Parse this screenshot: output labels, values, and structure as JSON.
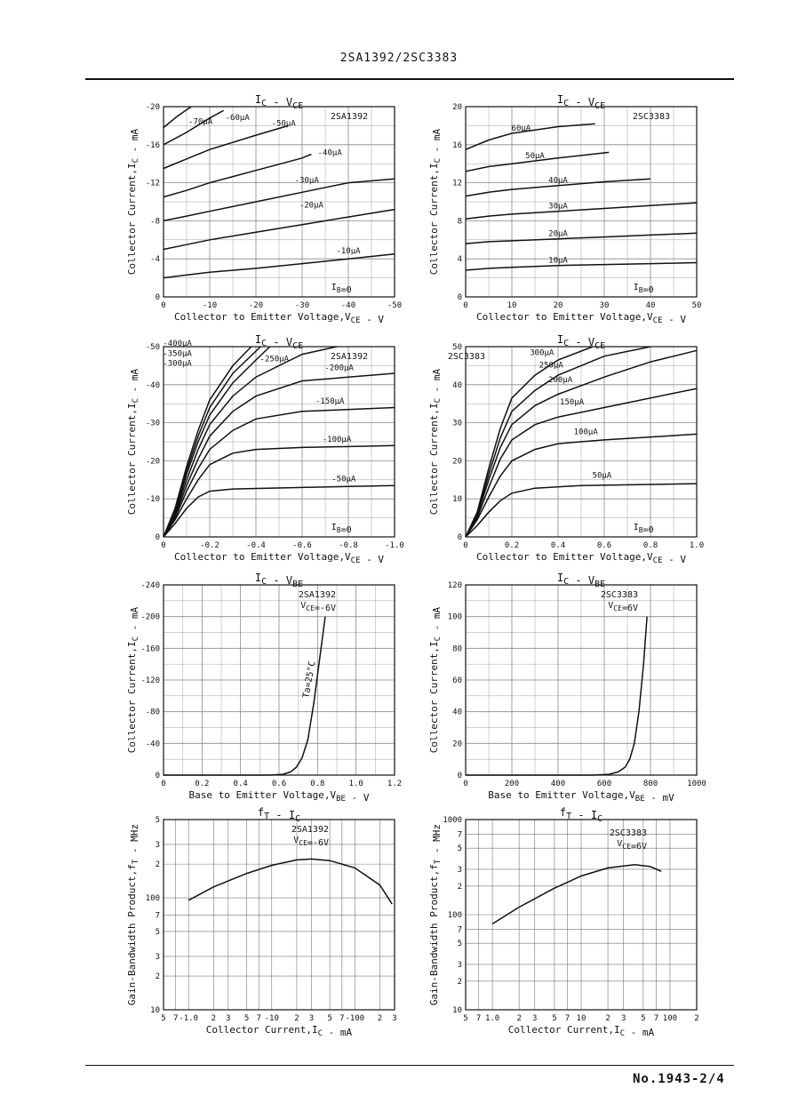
{
  "page": {
    "header": "2SA1392/2SC3383",
    "footer": "No.1943-2/4"
  },
  "chart_data": [
    {
      "id": "a",
      "type": "line",
      "title": "IC - VCE",
      "tag": "2SA1392",
      "xlabel": "Collector to Emitter Voltage,VCE - V",
      "ylabel": "Collector Current,IC - mA",
      "xlim": [
        0,
        -50
      ],
      "ylim": [
        0,
        -20
      ],
      "xticks": [
        "0",
        "-10",
        "-20",
        "-30",
        "-40",
        "-50"
      ],
      "yticks": [
        "0",
        "-4",
        "-8",
        "-12",
        "-16",
        "-20"
      ],
      "ib_label": "IB=0",
      "series": [
        {
          "name": "-10μA",
          "x": [
            0,
            -5,
            -10,
            -20,
            -30,
            -40,
            -50
          ],
          "y": [
            -2.0,
            -2.3,
            -2.6,
            -3.0,
            -3.5,
            -4.0,
            -4.5
          ]
        },
        {
          "name": "-20μA",
          "x": [
            0,
            -5,
            -10,
            -20,
            -30,
            -40,
            -50
          ],
          "y": [
            -5.0,
            -5.5,
            -6.0,
            -6.8,
            -7.6,
            -8.4,
            -9.2
          ]
        },
        {
          "name": "-30μA",
          "x": [
            0,
            -5,
            -10,
            -20,
            -30,
            -40,
            -50
          ],
          "y": [
            -8.0,
            -8.5,
            -9.0,
            -10.0,
            -11.0,
            -12.0,
            -12.4
          ]
        },
        {
          "name": "-40μA",
          "x": [
            0,
            -5,
            -10,
            -20,
            -30,
            -32
          ],
          "y": [
            -10.5,
            -11.2,
            -12.0,
            -13.3,
            -14.6,
            -15.0
          ]
        },
        {
          "name": "-50μA",
          "x": [
            0,
            -5,
            -10,
            -20,
            -27
          ],
          "y": [
            -13.5,
            -14.5,
            -15.5,
            -17.0,
            -18.0
          ]
        },
        {
          "name": "-60μA",
          "x": [
            0,
            -5,
            -10,
            -13
          ],
          "y": [
            -16.0,
            -17.3,
            -18.8,
            -19.6
          ]
        },
        {
          "name": "-70μA",
          "x": [
            0,
            -3,
            -6
          ],
          "y": [
            -17.8,
            -19.0,
            -20.0
          ]
        }
      ]
    },
    {
      "id": "b",
      "type": "line",
      "title": "IC - VCE",
      "tag": "2SC3383",
      "xlabel": "Collector to Emitter Voltage,VCE - V",
      "ylabel": "Collector Current,IC - mA",
      "xlim": [
        0,
        50
      ],
      "ylim": [
        0,
        20
      ],
      "xticks": [
        "0",
        "10",
        "20",
        "30",
        "40",
        "50"
      ],
      "yticks": [
        "0",
        "4",
        "8",
        "12",
        "16",
        "20"
      ],
      "ib_label": "IB=0",
      "series": [
        {
          "name": "10μA",
          "x": [
            0,
            5,
            10,
            20,
            30,
            40,
            50
          ],
          "y": [
            2.8,
            3.0,
            3.1,
            3.3,
            3.4,
            3.5,
            3.6
          ]
        },
        {
          "name": "20μA",
          "x": [
            0,
            5,
            10,
            20,
            30,
            40,
            50
          ],
          "y": [
            5.6,
            5.8,
            5.9,
            6.1,
            6.3,
            6.5,
            6.7
          ]
        },
        {
          "name": "30μA",
          "x": [
            0,
            5,
            10,
            20,
            30,
            40,
            50
          ],
          "y": [
            8.2,
            8.5,
            8.7,
            9.0,
            9.3,
            9.6,
            9.9
          ]
        },
        {
          "name": "40μA",
          "x": [
            0,
            5,
            10,
            20,
            30,
            40
          ],
          "y": [
            10.6,
            11.0,
            11.3,
            11.7,
            12.1,
            12.4
          ]
        },
        {
          "name": "50μA",
          "x": [
            0,
            5,
            10,
            20,
            31
          ],
          "y": [
            13.2,
            13.7,
            14.0,
            14.6,
            15.2
          ]
        },
        {
          "name": "60μA",
          "x": [
            0,
            5,
            10,
            20,
            28
          ],
          "y": [
            15.5,
            16.5,
            17.2,
            17.9,
            18.2
          ]
        }
      ]
    },
    {
      "id": "c",
      "type": "line",
      "title": "IC - VCE",
      "tag": "2SA1392",
      "xlabel": "Collector to Emitter Voltage,VCE - V",
      "ylabel": "Collector Current,IC - mA",
      "xlim": [
        0,
        -1.0
      ],
      "ylim": [
        0,
        -50
      ],
      "xticks": [
        "0",
        "-0.2",
        "-0.4",
        "-0.6",
        "-0.8",
        "-1.0"
      ],
      "yticks": [
        "0",
        "-10",
        "-20",
        "-30",
        "-40",
        "-50"
      ],
      "ib_label": "IB=0",
      "series": [
        {
          "name": "-50μA",
          "x": [
            0,
            -0.05,
            -0.1,
            -0.15,
            -0.2,
            -0.3,
            -0.6,
            -1.0
          ],
          "y": [
            0,
            -3.5,
            -7.5,
            -10.5,
            -12.0,
            -12.6,
            -13.0,
            -13.5
          ]
        },
        {
          "name": "-100μA",
          "x": [
            0,
            -0.05,
            -0.1,
            -0.15,
            -0.2,
            -0.3,
            -0.4,
            -0.6,
            -1.0
          ],
          "y": [
            0,
            -4.5,
            -10.0,
            -15.0,
            -19.0,
            -22.0,
            -23.0,
            -23.5,
            -24.0
          ]
        },
        {
          "name": "-150μA",
          "x": [
            0,
            -0.05,
            -0.1,
            -0.15,
            -0.2,
            -0.3,
            -0.4,
            -0.6,
            -1.0
          ],
          "y": [
            0,
            -5.0,
            -12.0,
            -18.0,
            -23.0,
            -28.0,
            -31.0,
            -33.0,
            -34.0
          ]
        },
        {
          "name": "-200μA",
          "x": [
            0,
            -0.05,
            -0.1,
            -0.15,
            -0.2,
            -0.3,
            -0.4,
            -0.6,
            -1.0
          ],
          "y": [
            0,
            -5.5,
            -13.5,
            -20.5,
            -26.5,
            -33.0,
            -37.0,
            -41.0,
            -43.0
          ]
        },
        {
          "name": "-250μA",
          "x": [
            0,
            -0.05,
            -0.1,
            -0.15,
            -0.2,
            -0.3,
            -0.4,
            -0.6,
            -0.75
          ],
          "y": [
            0,
            -6.0,
            -15.0,
            -23.0,
            -29.5,
            -37.0,
            -42.0,
            -48.0,
            -50.0
          ]
        },
        {
          "name": "-300μA",
          "x": [
            0,
            -0.05,
            -0.1,
            -0.15,
            -0.2,
            -0.3,
            -0.4,
            -0.46
          ],
          "y": [
            0,
            -6.5,
            -16.5,
            -25.0,
            -32.0,
            -40.5,
            -46.5,
            -50.0
          ]
        },
        {
          "name": "-350μA",
          "x": [
            0,
            -0.05,
            -0.1,
            -0.15,
            -0.2,
            -0.3,
            -0.42
          ],
          "y": [
            0,
            -7.0,
            -17.5,
            -26.5,
            -34.0,
            -43.0,
            -50.0
          ]
        },
        {
          "name": "-400μA",
          "x": [
            0,
            -0.05,
            -0.1,
            -0.15,
            -0.2,
            -0.3,
            -0.38
          ],
          "y": [
            0,
            -7.5,
            -18.5,
            -28.0,
            -36.0,
            -45.0,
            -50.0
          ]
        }
      ]
    },
    {
      "id": "d",
      "type": "line",
      "title": "IC - VCE",
      "tag": "2SC3383",
      "xlabel": "Collector to Emitter Voltage,VCE - V",
      "ylabel": "Collector Current,IC - mA",
      "xlim": [
        0,
        1.0
      ],
      "ylim": [
        0,
        50
      ],
      "xticks": [
        "0",
        "0.2",
        "0.4",
        "0.6",
        "0.8",
        "1.0"
      ],
      "yticks": [
        "0",
        "10",
        "20",
        "30",
        "40",
        "50"
      ],
      "ib_label": "IB=0",
      "series": [
        {
          "name": "50μA",
          "x": [
            0,
            0.05,
            0.1,
            0.15,
            0.2,
            0.3,
            0.5,
            1.0
          ],
          "y": [
            0,
            3.0,
            6.5,
            9.5,
            11.5,
            12.8,
            13.5,
            14.0
          ]
        },
        {
          "name": "100μA",
          "x": [
            0,
            0.05,
            0.1,
            0.15,
            0.2,
            0.3,
            0.4,
            0.6,
            1.0
          ],
          "y": [
            0,
            4.5,
            10.5,
            16.0,
            20.0,
            23.0,
            24.5,
            25.5,
            27.0
          ]
        },
        {
          "name": "150μA",
          "x": [
            0,
            0.05,
            0.1,
            0.15,
            0.2,
            0.3,
            0.4,
            0.6,
            1.0
          ],
          "y": [
            0,
            5.0,
            13.0,
            20.5,
            25.5,
            29.5,
            31.5,
            34.0,
            39.0
          ]
        },
        {
          "name": "200μA",
          "x": [
            0,
            0.05,
            0.1,
            0.15,
            0.2,
            0.3,
            0.4,
            0.6,
            0.8,
            1.0
          ],
          "y": [
            0,
            5.5,
            15.0,
            23.5,
            29.5,
            34.5,
            37.5,
            42.0,
            46.0,
            49.0
          ]
        },
        {
          "name": "250μA",
          "x": [
            0,
            0.05,
            0.1,
            0.15,
            0.2,
            0.3,
            0.4,
            0.6,
            0.8
          ],
          "y": [
            0,
            6.0,
            16.5,
            26.0,
            33.0,
            38.5,
            42.5,
            47.5,
            50.0
          ]
        },
        {
          "name": "300μA",
          "x": [
            0,
            0.05,
            0.1,
            0.15,
            0.2,
            0.3,
            0.4,
            0.55
          ],
          "y": [
            0,
            6.5,
            18.0,
            28.5,
            36.5,
            42.5,
            46.5,
            50.0
          ]
        }
      ]
    },
    {
      "id": "e",
      "type": "line",
      "title": "IC - VBE",
      "tag": "2SA1392",
      "condition": "VCE=-6V",
      "xlabel": "Base to Emitter Voltage,VBE - V",
      "ylabel": "Collector Current,IC - mA",
      "xlim": [
        0,
        1.2
      ],
      "ylim": [
        0,
        -240
      ],
      "xticks": [
        "0",
        "0.2",
        "0.4",
        "0.6",
        "0.8",
        "1.0",
        "1.2"
      ],
      "yticks": [
        "0",
        "-40",
        "-80",
        "-120",
        "-160",
        "-200",
        "-240"
      ],
      "curve_label": "Ta=25°C",
      "series": [
        {
          "name": "",
          "x": [
            0,
            0.55,
            0.62,
            0.66,
            0.69,
            0.72,
            0.75,
            0.78,
            0.81,
            0.84
          ],
          "y": [
            0,
            0,
            -1,
            -4,
            -10,
            -22,
            -45,
            -90,
            -145,
            -200
          ]
        }
      ]
    },
    {
      "id": "f",
      "type": "line",
      "title": "IC - VBE",
      "tag": "2SC3383",
      "condition": "VCE=6V",
      "xlabel": "Base to Emitter Voltage,VBE - mV",
      "ylabel": "Collector Current,IC - mA",
      "xlim": [
        0,
        1000
      ],
      "ylim": [
        0,
        120
      ],
      "xticks": [
        "0",
        "200",
        "400",
        "600",
        "800",
        "1000"
      ],
      "yticks": [
        "0",
        "20",
        "40",
        "60",
        "80",
        "100",
        "120"
      ],
      "series": [
        {
          "name": "",
          "x": [
            0,
            550,
            620,
            660,
            690,
            710,
            730,
            750,
            770,
            785
          ],
          "y": [
            0,
            0,
            0.5,
            2,
            5,
            10,
            20,
            40,
            70,
            100
          ]
        }
      ]
    },
    {
      "id": "g",
      "type": "line",
      "log": true,
      "title": "fT - IC",
      "tag": "2SA1392",
      "condition": "VCE=-6V",
      "xlabel": "Collector Current,IC - mA",
      "ylabel": "Gain-Bandwidth Product,fT - MHz",
      "xlim": [
        0.5,
        300
      ],
      "ylim": [
        10,
        500
      ],
      "xticks": [
        {
          "v": 0.5,
          "t": "5"
        },
        {
          "v": 0.7,
          "t": "7"
        },
        {
          "v": 1,
          "t": "-1.0"
        },
        {
          "v": 2,
          "t": "2"
        },
        {
          "v": 3,
          "t": "3"
        },
        {
          "v": 5,
          "t": "5"
        },
        {
          "v": 7,
          "t": "7"
        },
        {
          "v": 10,
          "t": "-10"
        },
        {
          "v": 20,
          "t": "2"
        },
        {
          "v": 30,
          "t": "3"
        },
        {
          "v": 50,
          "t": "5"
        },
        {
          "v": 70,
          "t": "7"
        },
        {
          "v": 100,
          "t": "-100"
        },
        {
          "v": 200,
          "t": "2"
        },
        {
          "v": 300,
          "t": "3"
        }
      ],
      "yticks": [
        {
          "v": 10,
          "t": "10"
        },
        {
          "v": 20,
          "t": "2"
        },
        {
          "v": 30,
          "t": "3"
        },
        {
          "v": 50,
          "t": "5"
        },
        {
          "v": 70,
          "t": "7"
        },
        {
          "v": 100,
          "t": "100"
        },
        {
          "v": 200,
          "t": "2"
        },
        {
          "v": 300,
          "t": "3"
        },
        {
          "v": 500,
          "t": "5"
        }
      ],
      "series": [
        {
          "name": "",
          "x": [
            1,
            2,
            5,
            10,
            20,
            30,
            50,
            100,
            200,
            280
          ],
          "y": [
            95,
            125,
            165,
            195,
            218,
            222,
            215,
            185,
            130,
            88
          ]
        }
      ]
    },
    {
      "id": "h",
      "type": "line",
      "log": true,
      "title": "fT - IC",
      "tag": "2SC3383",
      "condition": "VCE=6V",
      "xlabel": "Collector Current,IC - mA",
      "ylabel": "Gain-Bandwidth Product,fT - MHz",
      "xlim": [
        0.5,
        200
      ],
      "ylim": [
        10,
        1000
      ],
      "xticks": [
        {
          "v": 0.5,
          "t": "5"
        },
        {
          "v": 0.7,
          "t": "7"
        },
        {
          "v": 1,
          "t": "1.0"
        },
        {
          "v": 2,
          "t": "2"
        },
        {
          "v": 3,
          "t": "3"
        },
        {
          "v": 5,
          "t": "5"
        },
        {
          "v": 7,
          "t": "7"
        },
        {
          "v": 10,
          "t": "10"
        },
        {
          "v": 20,
          "t": "2"
        },
        {
          "v": 30,
          "t": "3"
        },
        {
          "v": 50,
          "t": "5"
        },
        {
          "v": 70,
          "t": "7"
        },
        {
          "v": 100,
          "t": "100"
        },
        {
          "v": 200,
          "t": "2"
        }
      ],
      "yticks": [
        {
          "v": 10,
          "t": "10"
        },
        {
          "v": 20,
          "t": "2"
        },
        {
          "v": 30,
          "t": "3"
        },
        {
          "v": 50,
          "t": "5"
        },
        {
          "v": 70,
          "t": "7"
        },
        {
          "v": 100,
          "t": "100"
        },
        {
          "v": 200,
          "t": "2"
        },
        {
          "v": 300,
          "t": "3"
        },
        {
          "v": 500,
          "t": "5"
        },
        {
          "v": 700,
          "t": "7"
        },
        {
          "v": 1000,
          "t": "1000"
        }
      ],
      "series": [
        {
          "name": "",
          "x": [
            1,
            2,
            5,
            10,
            20,
            40,
            60,
            80
          ],
          "y": [
            80,
            120,
            190,
            255,
            310,
            335,
            320,
            285
          ]
        }
      ]
    }
  ]
}
